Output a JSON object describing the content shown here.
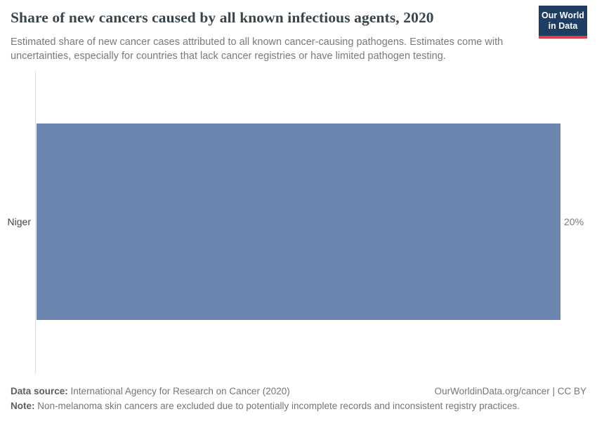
{
  "header": {
    "title": "Share of new cancers caused by all known infectious agents, 2020",
    "subtitle": "Estimated share of new cancer cases attributed to all known cancer-causing pathogens. Estimates come with uncertainties, especially for countries that lack cancer registries or have limited pathogen testing."
  },
  "logo": {
    "line1": "Our World",
    "line2": "in Data",
    "background_color": "#1d3d63",
    "accent_color": "#dc3e42"
  },
  "chart_data": {
    "type": "bar",
    "orientation": "horizontal",
    "categories": [
      "Niger"
    ],
    "values": [
      20
    ],
    "unit": "%",
    "value_labels": [
      "20%"
    ],
    "title": "Share of new cancers caused by all known infectious agents, 2020",
    "xlabel": "",
    "ylabel": "",
    "xlim": [
      0,
      20
    ],
    "grid": false,
    "legend": "none",
    "bar_color": "#6d86af",
    "axis_line_color": "#dedede"
  },
  "labels": {
    "entity": "Niger",
    "value": "20%"
  },
  "footer": {
    "source_label": "Data source:",
    "source_text": "International Agency for Research on Cancer (2020)",
    "credit": "OurWorldinData.org/cancer | CC BY",
    "note_label": "Note:",
    "note_text": "Non-melanoma skin cancers are excluded due to potentially incomplete records and inconsistent registry practices."
  }
}
